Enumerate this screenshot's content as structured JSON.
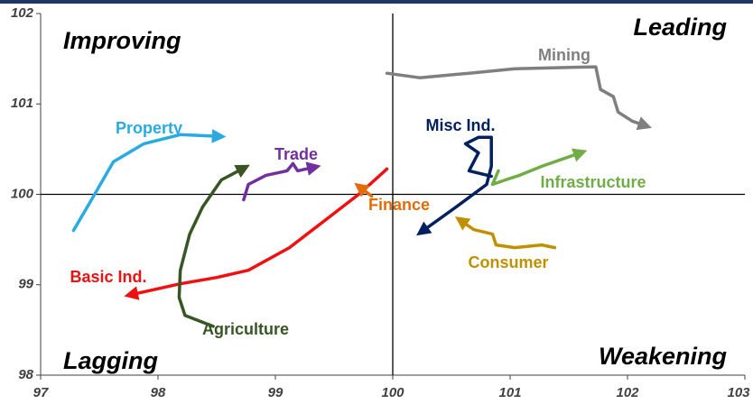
{
  "chart_data": {
    "type": "line",
    "quadrant_labels": [
      "Improving",
      "Leading",
      "Lagging",
      "Weakening"
    ],
    "xlim": [
      97,
      103
    ],
    "xticks": [
      97,
      98,
      99,
      100,
      101,
      102,
      103
    ],
    "ylim": [
      98,
      102
    ],
    "yticks": [
      98,
      99,
      100,
      101,
      102
    ],
    "reference_lines": {
      "x": 100,
      "y": 100
    },
    "series": [
      {
        "name": "Property",
        "color": "#29abe2",
        "x": [
          97.28,
          97.42,
          97.62,
          97.88,
          98.19,
          98.52
        ],
        "values": [
          99.6,
          99.91,
          100.36,
          100.56,
          100.66,
          100.64
        ]
      },
      {
        "name": "Trade",
        "color": "#7030a0",
        "x": [
          98.73,
          98.77,
          98.92,
          99.1,
          99.15,
          99.19,
          99.33
        ],
        "values": [
          99.94,
          100.11,
          100.21,
          100.26,
          100.34,
          100.26,
          100.3
        ]
      },
      {
        "name": "Basic Ind.",
        "color": "#ee1111",
        "x": [
          99.95,
          99.72,
          99.42,
          99.12,
          98.77,
          98.5,
          98.19,
          97.77
        ],
        "values": [
          100.28,
          100.01,
          99.71,
          99.41,
          99.16,
          99.08,
          99.01,
          98.89
        ]
      },
      {
        "name": "Agriculture",
        "color": "#375623",
        "x": [
          98.47,
          98.23,
          98.18,
          98.19,
          98.27,
          98.38,
          98.54,
          98.73
        ],
        "values": [
          98.54,
          98.66,
          98.86,
          99.16,
          99.56,
          99.86,
          100.16,
          100.29
        ]
      },
      {
        "name": "Finance",
        "color": "#e26b0a",
        "x": [
          99.82,
          99.72
        ],
        "values": [
          99.98,
          100.08
        ]
      },
      {
        "name": "Misc Ind.",
        "color": "#002060",
        "x": [
          100.84,
          100.65,
          100.73,
          100.62,
          100.73,
          100.84,
          100.84,
          100.8,
          100.54,
          100.25
        ],
        "values": [
          100.2,
          100.26,
          100.46,
          100.56,
          100.63,
          100.63,
          100.31,
          100.11,
          99.86,
          99.59
        ]
      },
      {
        "name": "Infrastructure",
        "color": "#70ad47",
        "x": [
          100.9,
          100.85,
          100.96,
          101.08,
          101.27,
          101.6
        ],
        "values": [
          100.26,
          100.11,
          100.16,
          100.21,
          100.31,
          100.46
        ]
      },
      {
        "name": "Consumer",
        "color": "#bf9000",
        "x": [
          101.38,
          101.27,
          101.04,
          100.88,
          100.85,
          100.69,
          100.58
        ],
        "values": [
          99.41,
          99.44,
          99.41,
          99.44,
          99.56,
          99.61,
          99.71
        ]
      },
      {
        "name": "Mining",
        "color": "#7f7f7f",
        "x": [
          99.95,
          100.23,
          100.65,
          101.04,
          101.73,
          101.77,
          101.88,
          101.92,
          102.04,
          102.15
        ],
        "values": [
          101.34,
          101.29,
          101.34,
          101.39,
          101.41,
          101.16,
          101.08,
          100.91,
          100.81,
          100.76
        ]
      }
    ]
  }
}
